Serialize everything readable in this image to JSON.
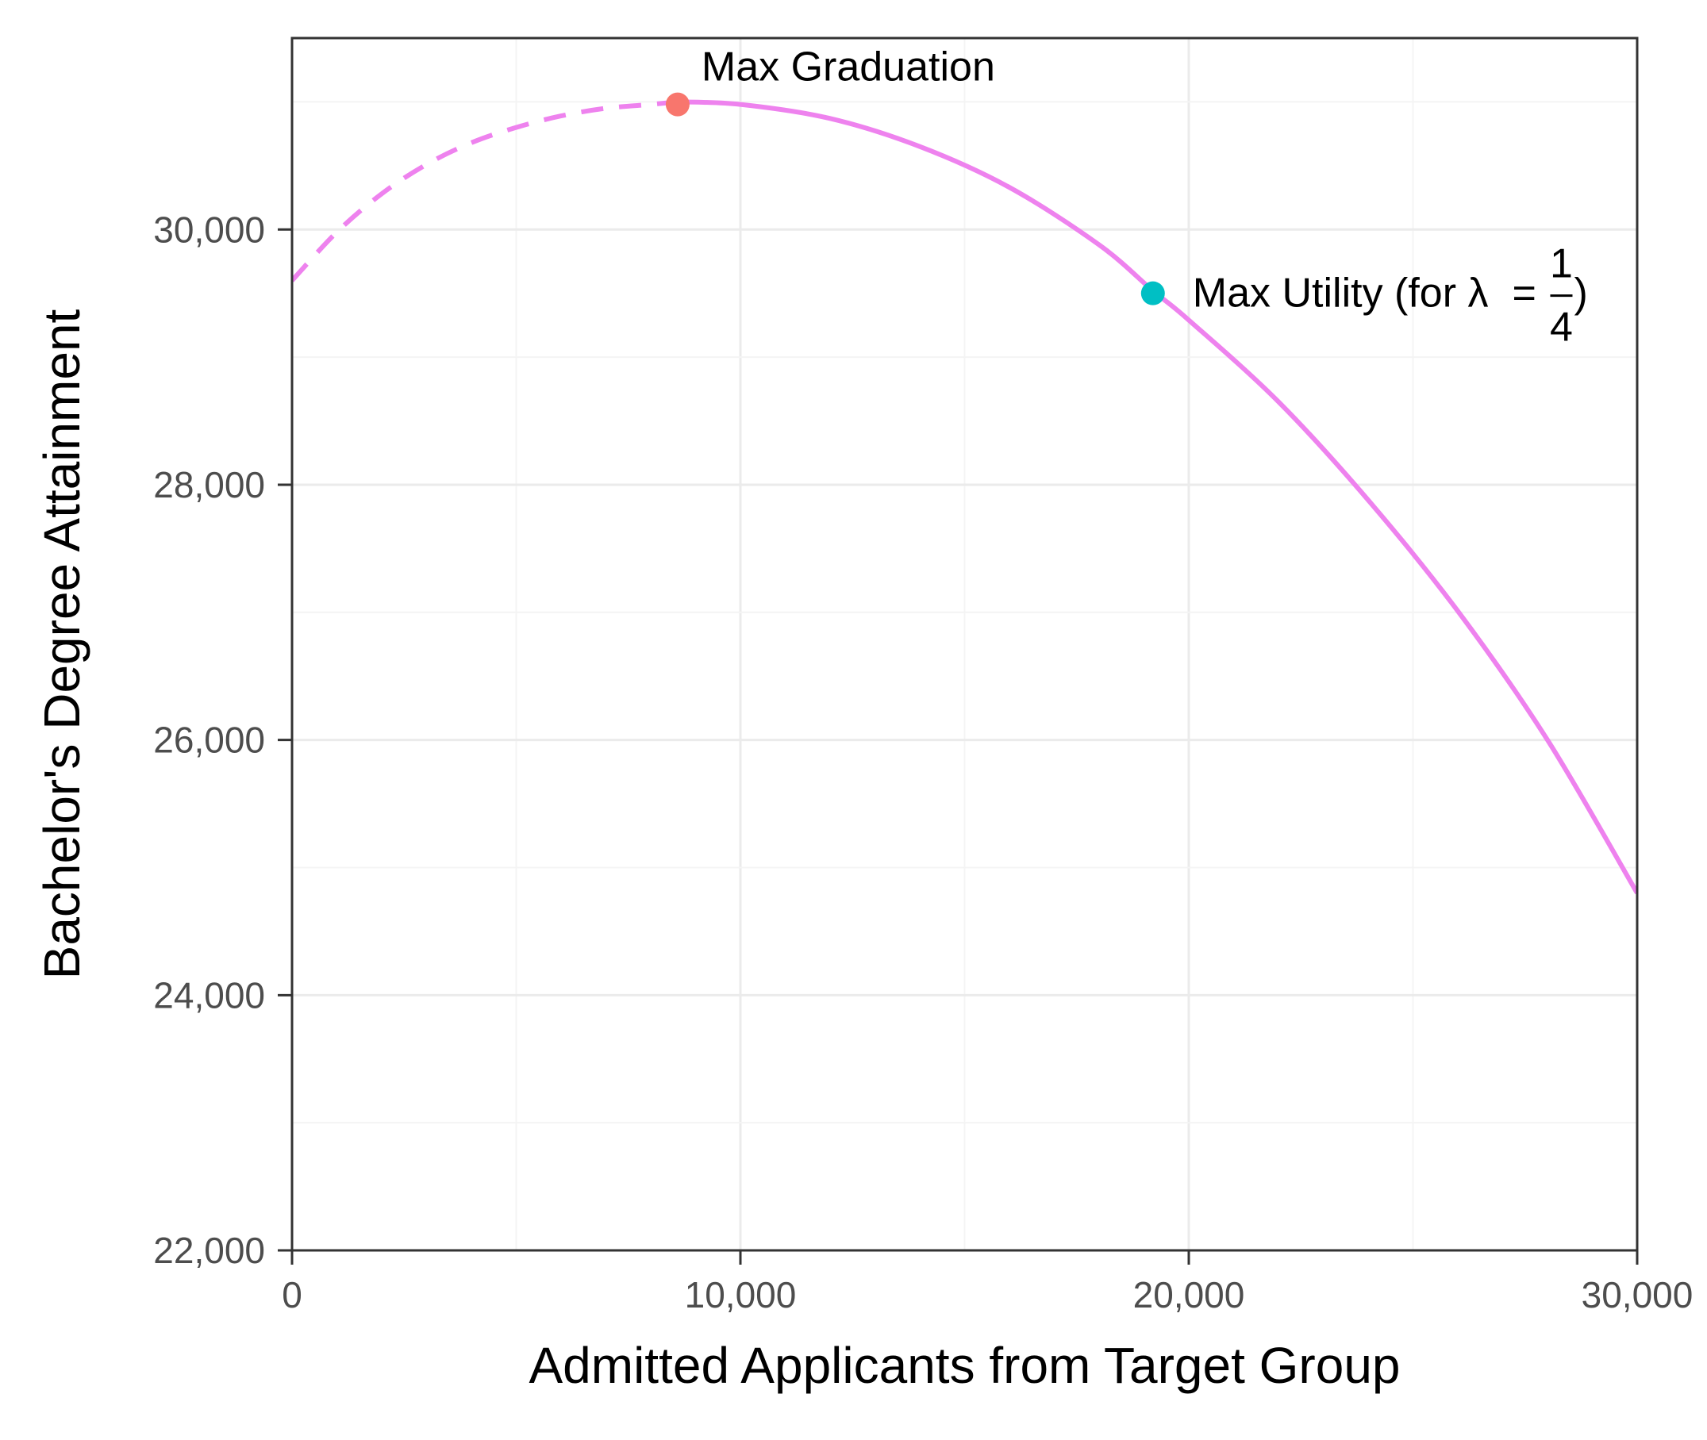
{
  "chart_data": {
    "type": "line",
    "title": "",
    "xlabel": "Admitted Applicants from Target Group",
    "ylabel": "Bachelor's Degree Attainment",
    "xlim": [
      0,
      30000
    ],
    "ylim": [
      22000,
      31500
    ],
    "x_ticks": [
      0,
      10000,
      20000,
      30000
    ],
    "x_tick_labels": [
      "0",
      "10,000",
      "20,000",
      "30,000"
    ],
    "y_ticks": [
      22000,
      24000,
      26000,
      28000,
      30000
    ],
    "y_tick_labels": [
      "22,000",
      "24,000",
      "26,000",
      "28,000",
      "30,000"
    ],
    "grid": true,
    "series": [
      {
        "style": "dashed",
        "color": "#EE82EE",
        "x": [
          0,
          1000,
          2000,
          3000,
          4000,
          5000,
          6000,
          7000,
          8000,
          8600
        ],
        "y": [
          29600,
          29980,
          30280,
          30510,
          30680,
          30800,
          30890,
          30950,
          30980,
          31000
        ]
      },
      {
        "style": "solid",
        "color": "#EE82EE",
        "x": [
          8600,
          10000,
          12000,
          14000,
          16000,
          18000,
          19200,
          20000,
          22000,
          24000,
          26000,
          28000,
          30000
        ],
        "y": [
          31000,
          30980,
          30870,
          30650,
          30330,
          29880,
          29520,
          29290,
          28650,
          27880,
          27010,
          26000,
          24800
        ]
      }
    ],
    "points": [
      {
        "label": "Max Graduation",
        "x": 8600,
        "y": 30980,
        "color": "#F8766D"
      },
      {
        "label": "Max Utility (for λ",
        "label_eq": "=",
        "frac_num": "1",
        "frac_den": "4",
        "label_close": ")",
        "x": 19200,
        "y": 29500,
        "color": "#00BFC4"
      }
    ]
  }
}
